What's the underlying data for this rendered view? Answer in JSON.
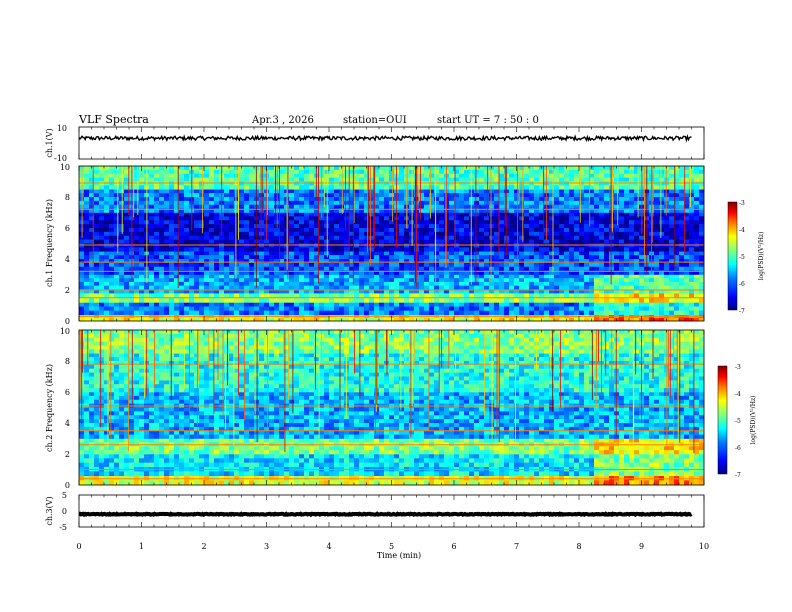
{
  "header": {
    "title": "VLF Spectra",
    "date": "Apr.3 , 2026",
    "station": "station=OUI",
    "start_ut": "start UT = 7 : 50 : 0"
  },
  "chart_data": [
    {
      "type": "line",
      "name": "ch1-waveform",
      "ylabel": "ch.1(V)",
      "ylim": [
        -10,
        10
      ],
      "yticks": [
        "10",
        "-10"
      ],
      "baseline": 3,
      "amplitude": 1.2,
      "data_end_min": 9.8
    },
    {
      "type": "heatmap",
      "name": "ch1-spectrogram",
      "ylabel": "ch.1 Frequency (kHz)",
      "ylim": [
        0,
        10
      ],
      "yticks": [
        "0",
        "2",
        "4",
        "6",
        "8",
        "10"
      ],
      "colorbar": {
        "label": "log(PSD)(V²/Hz)",
        "range": [
          -7,
          -3
        ],
        "ticks": [
          "-3",
          "-4",
          "-5",
          "-6",
          "-7"
        ]
      },
      "bands": [
        {
          "f_low": 0,
          "f_high": 0.4,
          "level": -4.5
        },
        {
          "f_low": 0.4,
          "f_high": 1.2,
          "level": -6.0
        },
        {
          "f_low": 1.2,
          "f_high": 1.8,
          "level": -5.0
        },
        {
          "f_low": 1.8,
          "f_high": 3.0,
          "level": -5.8
        },
        {
          "f_low": 3.0,
          "f_high": 4.5,
          "level": -6.2
        },
        {
          "f_low": 4.5,
          "f_high": 7.0,
          "level": -6.6
        },
        {
          "f_low": 7.0,
          "f_high": 8.5,
          "level": -6.0
        },
        {
          "f_low": 8.5,
          "f_high": 10,
          "level": -5.2
        }
      ],
      "lines_khz": [
        0.3,
        1.5,
        2.0,
        3.2,
        3.8,
        4.9,
        7.2,
        8.9
      ]
    },
    {
      "type": "heatmap",
      "name": "ch2-spectrogram",
      "ylabel": "ch.2 Frequency (kHz)",
      "ylim": [
        0,
        10
      ],
      "yticks": [
        "0",
        "2",
        "4",
        "6",
        "8",
        "10"
      ],
      "colorbar": {
        "label": "log(PSD)(V²/Hz)",
        "range": [
          -7,
          -3
        ],
        "ticks": [
          "-3",
          "-4",
          "-5",
          "-6",
          "-7"
        ]
      },
      "bands": [
        {
          "f_low": 0,
          "f_high": 0.6,
          "level": -4.6
        },
        {
          "f_low": 0.6,
          "f_high": 2.0,
          "level": -5.6
        },
        {
          "f_low": 2.0,
          "f_high": 3.0,
          "level": -5.0
        },
        {
          "f_low": 3.0,
          "f_high": 6.0,
          "level": -5.8
        },
        {
          "f_low": 6.0,
          "f_high": 8.5,
          "level": -5.4
        },
        {
          "f_low": 8.5,
          "f_high": 10,
          "level": -5.0
        }
      ],
      "lines_khz": [
        0.4,
        1.0,
        2.6,
        3.5,
        5.1,
        7.8
      ]
    },
    {
      "type": "line",
      "name": "ch3-waveform",
      "ylabel": "ch.3(V)",
      "ylim": [
        -5,
        5
      ],
      "yticks": [
        "5",
        "0",
        "-5"
      ],
      "baseline": -1.0,
      "amplitude": 0.15,
      "data_end_min": 9.8
    }
  ],
  "x_axis": {
    "label": "Time (min)",
    "xlim": [
      0,
      10
    ],
    "ticks": [
      "0",
      "1",
      "2",
      "3",
      "4",
      "5",
      "6",
      "7",
      "8",
      "9",
      "10"
    ]
  },
  "colors": {
    "jet": [
      "#000080",
      "#0000ff",
      "#0080ff",
      "#00ffff",
      "#80ff80",
      "#ffff00",
      "#ff8000",
      "#ff0000",
      "#800000"
    ]
  }
}
